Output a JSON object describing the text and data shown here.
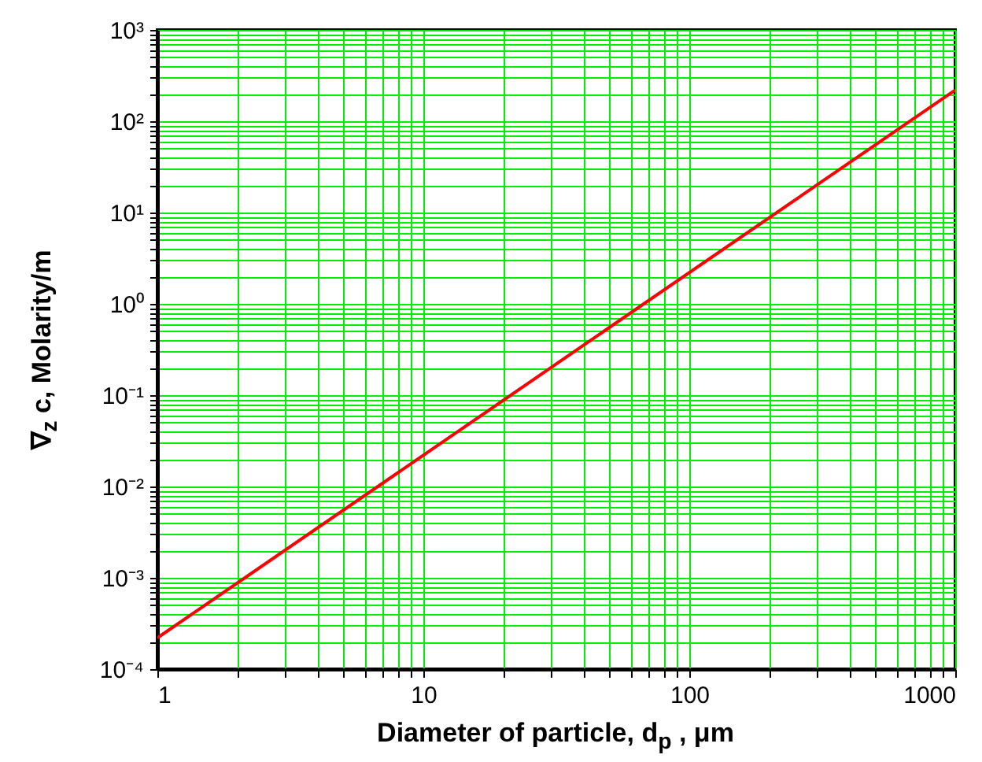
{
  "chart_data": {
    "type": "line",
    "xlabel": "Diameter of particle, d$_{p}$ , μm",
    "ylabel": "∇$_{z}$ c, Molarity/m",
    "x": [
      1,
      1000
    ],
    "series": [
      {
        "color": "#ff0000",
        "values": [
          0.00022,
          220
        ]
      }
    ],
    "log": "xy",
    "xlim": [
      1,
      1000
    ],
    "ylim": [
      0.0001,
      1000
    ],
    "xticks": [
      1,
      10,
      100,
      1000
    ],
    "yticks": [
      {
        "value": 0.0001,
        "label": "10⁻⁴"
      },
      {
        "value": 0.001,
        "label": "10⁻³"
      },
      {
        "value": 0.01,
        "label": "10⁻²"
      },
      {
        "value": 0.1,
        "label": "10⁻¹"
      },
      {
        "value": 1,
        "label": "10⁰"
      },
      {
        "value": 10,
        "label": "10¹"
      },
      {
        "value": 100,
        "label": "10²"
      },
      {
        "value": 1000,
        "label": "10³"
      }
    ],
    "grid": true,
    "marker": "none",
    "line_style": "solid"
  }
}
